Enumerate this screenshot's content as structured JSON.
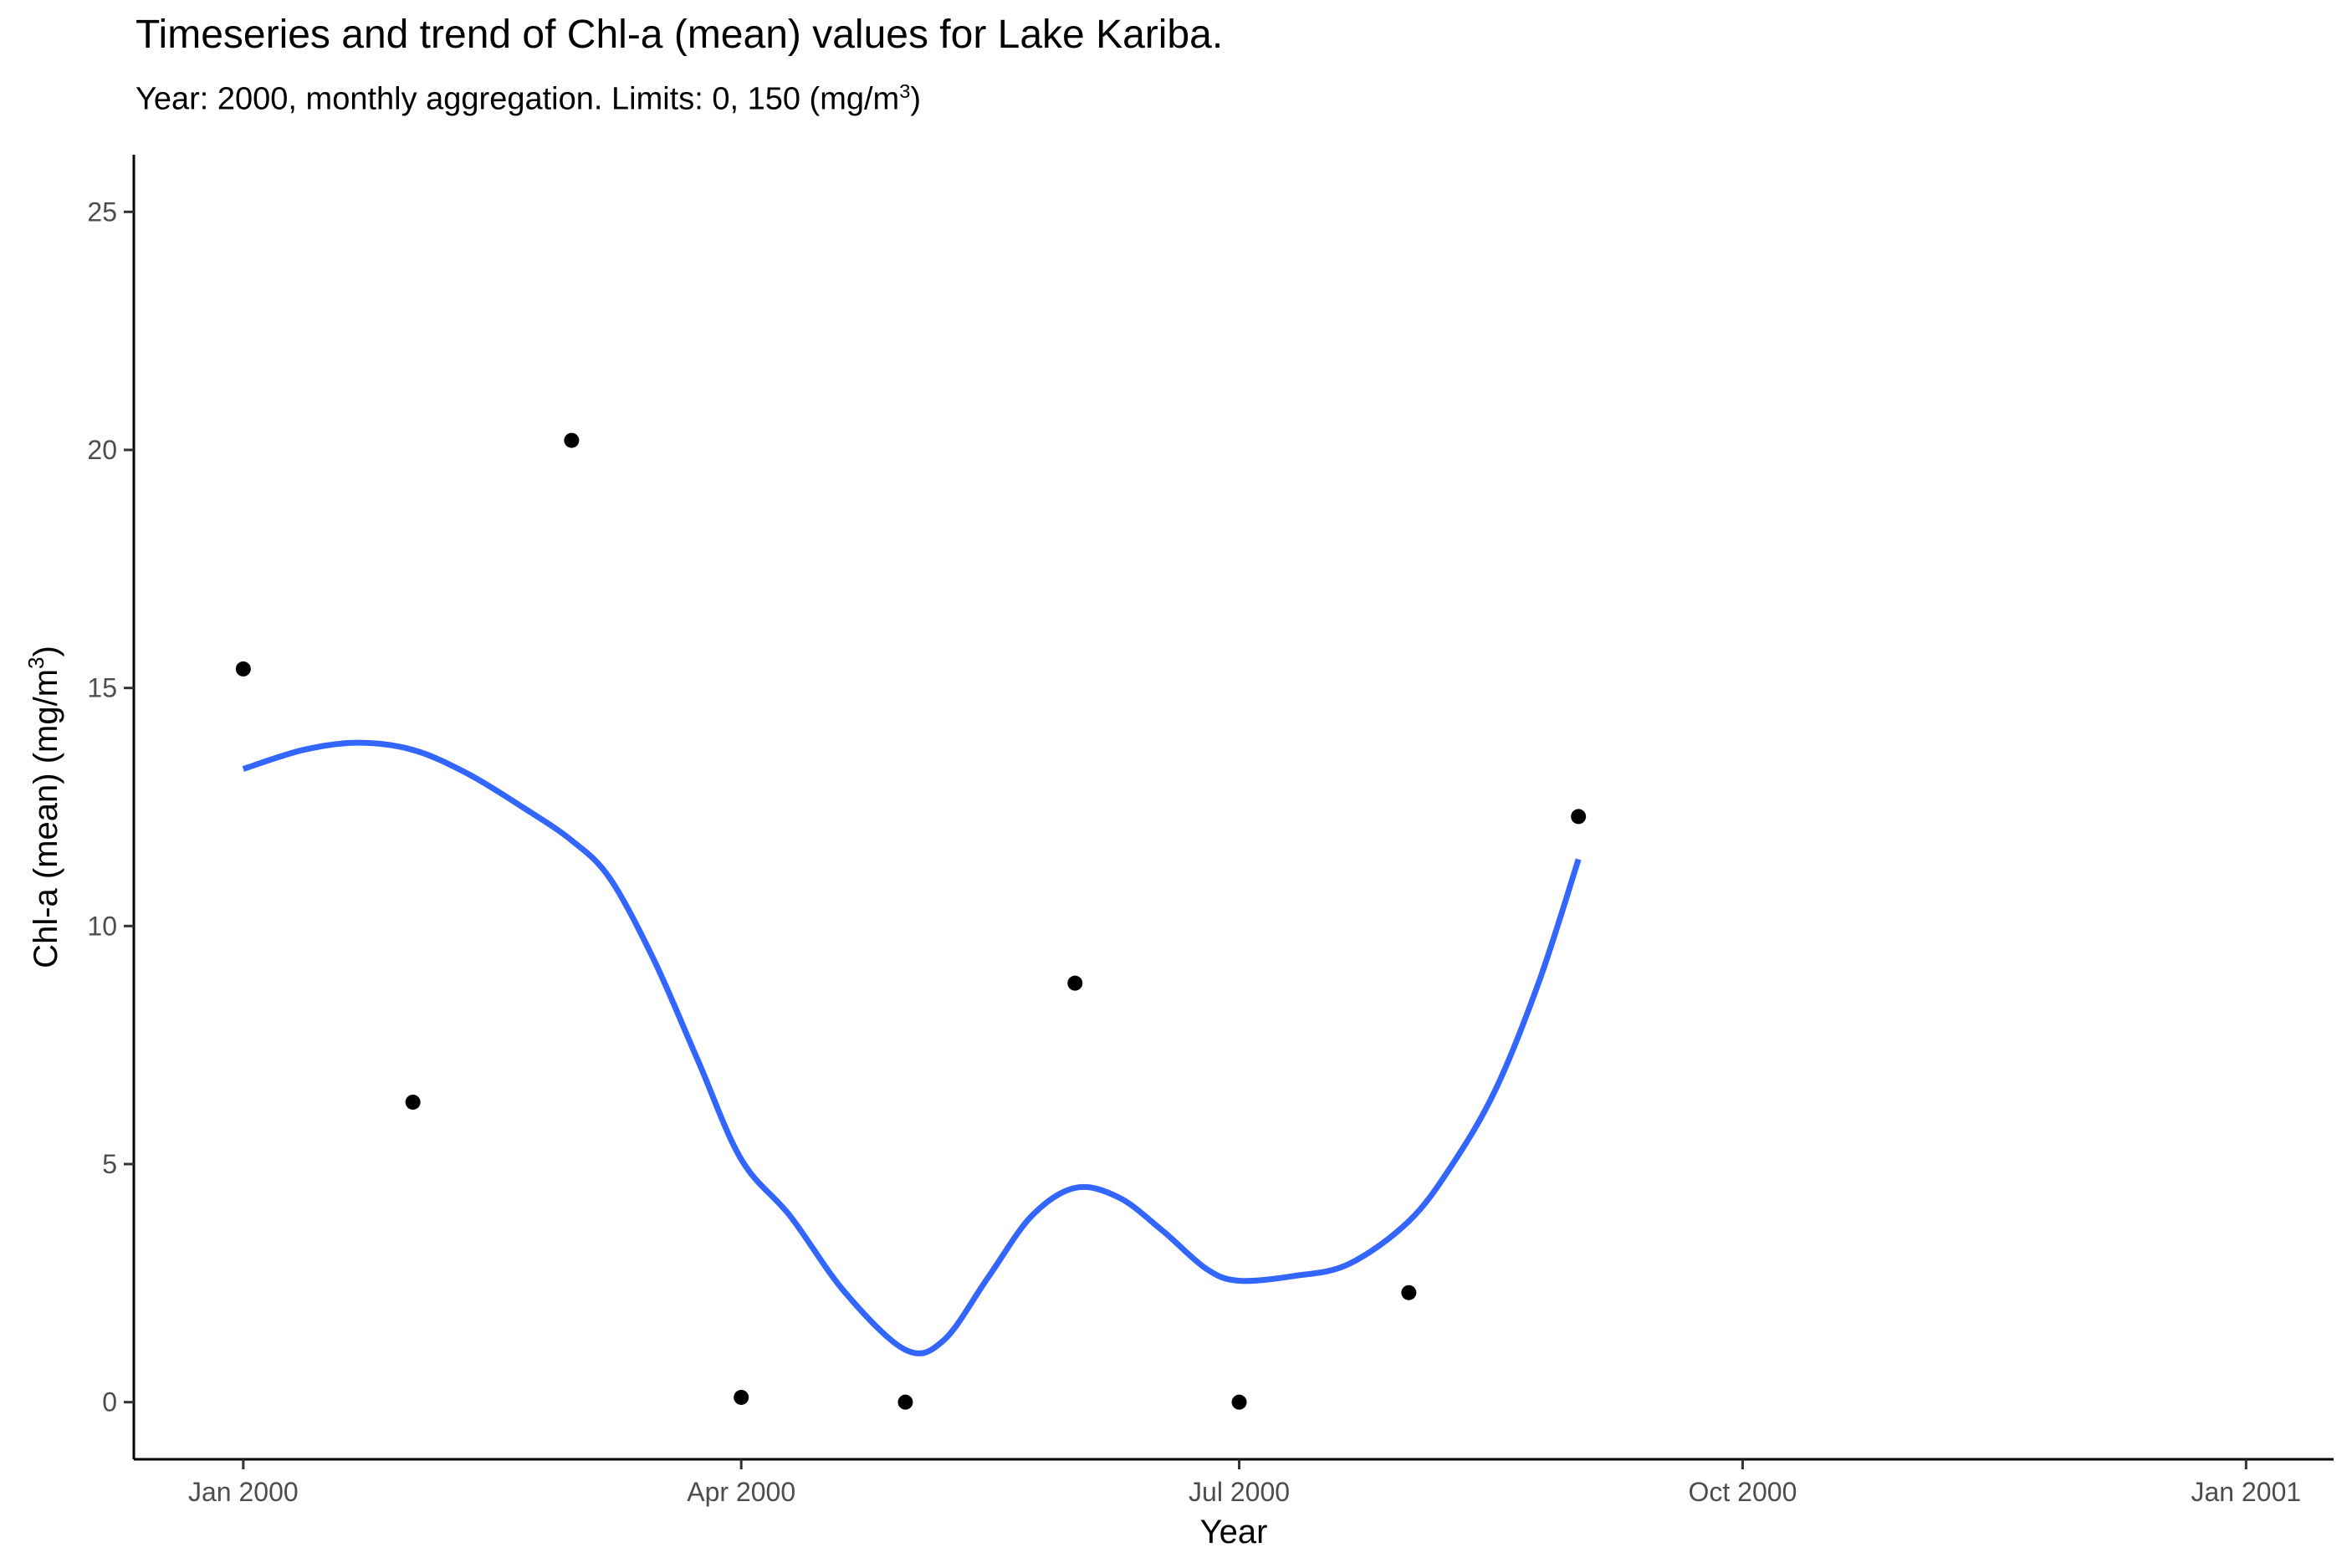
{
  "chart_data": {
    "type": "scatter",
    "title": "Timeseries and trend of Chl-a (mean) values for Lake Kariba.",
    "subtitle": {
      "text": "Year: 2000, monthly aggregation. Limits: 0, 150 (mg/m",
      "superscript": "3",
      "suffix": ")"
    },
    "xlabel": "Year",
    "ylabel": {
      "text": "Chl-a (mean) (mg/m",
      "superscript": "3",
      "suffix": ")"
    },
    "xlim": [
      "1999-12-12",
      "2001-01-17"
    ],
    "ylim": [
      -1.2,
      26.2
    ],
    "x_ticks": [
      {
        "date": "2000-01-01",
        "label": "Jan 2000"
      },
      {
        "date": "2000-04-01",
        "label": "Apr 2000"
      },
      {
        "date": "2000-07-01",
        "label": "Jul 2000"
      },
      {
        "date": "2000-10-01",
        "label": "Oct 2000"
      },
      {
        "date": "2001-01-01",
        "label": "Jan 2001"
      }
    ],
    "y_ticks": [
      0,
      5,
      10,
      15,
      20,
      25
    ],
    "grid": false,
    "series": [
      {
        "kind": "points",
        "color": "#000000",
        "points": [
          {
            "x": "2000-01-01",
            "y": 15.4
          },
          {
            "x": "2000-02-01",
            "y": 6.3
          },
          {
            "x": "2000-03-01",
            "y": 20.2
          },
          {
            "x": "2000-04-01",
            "y": 0.1
          },
          {
            "x": "2000-05-01",
            "y": 0.0
          },
          {
            "x": "2000-06-01",
            "y": 8.8
          },
          {
            "x": "2000-07-01",
            "y": 0.0
          },
          {
            "x": "2000-08-01",
            "y": 2.3
          },
          {
            "x": "2000-09-01",
            "y": 12.3
          }
        ]
      },
      {
        "kind": "trend",
        "color": "#3366FF",
        "points": [
          {
            "x": "2000-01-01",
            "y": 13.3
          },
          {
            "x": "2000-01-12",
            "y": 13.7
          },
          {
            "x": "2000-01-22",
            "y": 13.85
          },
          {
            "x": "2000-02-01",
            "y": 13.7
          },
          {
            "x": "2000-02-11",
            "y": 13.2
          },
          {
            "x": "2000-02-21",
            "y": 12.5
          },
          {
            "x": "2000-03-01",
            "y": 11.8
          },
          {
            "x": "2000-03-08",
            "y": 11.0
          },
          {
            "x": "2000-03-16",
            "y": 9.3
          },
          {
            "x": "2000-03-24",
            "y": 7.2
          },
          {
            "x": "2000-04-01",
            "y": 5.1
          },
          {
            "x": "2000-04-10",
            "y": 3.9
          },
          {
            "x": "2000-04-20",
            "y": 2.3
          },
          {
            "x": "2000-05-01",
            "y": 1.1
          },
          {
            "x": "2000-05-08",
            "y": 1.3
          },
          {
            "x": "2000-05-16",
            "y": 2.6
          },
          {
            "x": "2000-05-24",
            "y": 3.9
          },
          {
            "x": "2000-06-01",
            "y": 4.5
          },
          {
            "x": "2000-06-09",
            "y": 4.3
          },
          {
            "x": "2000-06-17",
            "y": 3.6
          },
          {
            "x": "2000-06-25",
            "y": 2.8
          },
          {
            "x": "2000-07-01",
            "y": 2.55
          },
          {
            "x": "2000-07-11",
            "y": 2.65
          },
          {
            "x": "2000-07-21",
            "y": 2.9
          },
          {
            "x": "2000-08-01",
            "y": 3.8
          },
          {
            "x": "2000-08-09",
            "y": 5.0
          },
          {
            "x": "2000-08-17",
            "y": 6.6
          },
          {
            "x": "2000-08-25",
            "y": 8.9
          },
          {
            "x": "2000-09-01",
            "y": 11.4
          }
        ]
      }
    ]
  }
}
